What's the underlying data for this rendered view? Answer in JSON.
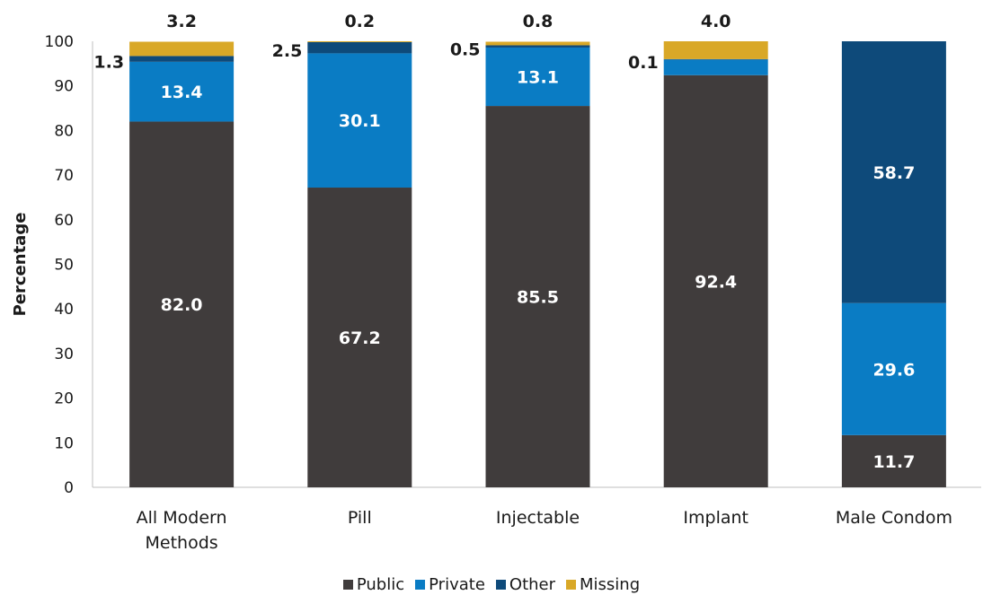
{
  "chart_data": {
    "type": "bar",
    "stacked": true,
    "ylabel": "Percentage",
    "ylim": [
      0,
      100
    ],
    "yticks": [
      0,
      10,
      20,
      30,
      40,
      50,
      60,
      70,
      80,
      90,
      100
    ],
    "categories": [
      [
        "All Modern",
        "Methods"
      ],
      [
        "Pill"
      ],
      [
        "Injectable"
      ],
      [
        "Implant"
      ],
      [
        "Male Condom"
      ]
    ],
    "series": [
      {
        "name": "Public",
        "color": "#403c3c",
        "values": [
          82.0,
          67.2,
          85.5,
          92.4,
          11.7
        ],
        "labels": [
          "82.0",
          "67.2",
          "85.5",
          "92.4",
          "11.7"
        ]
      },
      {
        "name": "Private",
        "color": "#0a7cc4",
        "values": [
          13.4,
          30.1,
          13.1,
          3.5,
          29.6
        ],
        "labels": [
          "13.4",
          "30.1",
          "13.1",
          "",
          "29.6"
        ]
      },
      {
        "name": "Other",
        "color": "#0e4a7a",
        "values": [
          1.3,
          2.5,
          0.5,
          0.1,
          58.7
        ],
        "labels": [
          "1.3",
          "2.5",
          "0.5",
          "0.1",
          "58.7"
        ]
      },
      {
        "name": "Missing",
        "color": "#d9a827",
        "values": [
          3.2,
          0.2,
          0.8,
          4.0,
          0
        ],
        "labels": [
          "3.2",
          "0.2",
          "0.8",
          "4.0",
          ""
        ]
      }
    ],
    "legend_position": "bottom",
    "grid": false
  }
}
